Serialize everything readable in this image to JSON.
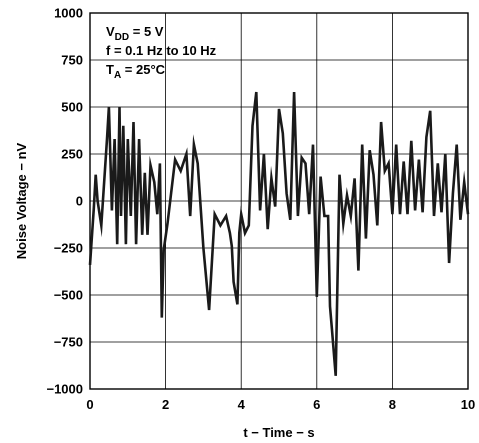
{
  "chart_data": {
    "type": "line",
    "title": "",
    "xlabel": "t − Time − s",
    "ylabel": "Noise Voltage − nV",
    "xlim": [
      0,
      10
    ],
    "ylim": [
      -1000,
      1000
    ],
    "x_ticks": [
      "0",
      "2",
      "4",
      "6",
      "8",
      "10"
    ],
    "y_ticks": [
      "1000",
      "750",
      "500",
      "250",
      "0",
      "−250",
      "−500",
      "−750",
      "−1000"
    ],
    "grid": true,
    "annotations": [
      {
        "main": "V",
        "sub": "DD",
        "rest": " = 5 V"
      },
      {
        "main": "f = 0.1 Hz to 10 Hz",
        "sub": "",
        "rest": ""
      },
      {
        "main": "T",
        "sub": "A",
        "rest": " = 25°C"
      }
    ],
    "series": [
      {
        "x": [
          0.0,
          0.1,
          0.15,
          0.2,
          0.3,
          0.45,
          0.5,
          0.58,
          0.65,
          0.72,
          0.78,
          0.82,
          0.88,
          0.95,
          1.0,
          1.08,
          1.15,
          1.22,
          1.3,
          1.38,
          1.45,
          1.52,
          1.6,
          1.7,
          1.78,
          1.85,
          1.9,
          1.95,
          2.05,
          2.25,
          2.4,
          2.55,
          2.65,
          2.75,
          2.85,
          3.0,
          3.15,
          3.3,
          3.45,
          3.6,
          3.7,
          3.75,
          3.8,
          3.9,
          3.95,
          4.0,
          4.1,
          4.2,
          4.3,
          4.4,
          4.5,
          4.6,
          4.7,
          4.8,
          4.9,
          5.0,
          5.1,
          5.2,
          5.3,
          5.4,
          5.5,
          5.6,
          5.7,
          5.8,
          5.9,
          6.0,
          6.1,
          6.2,
          6.3,
          6.35,
          6.4,
          6.5,
          6.6,
          6.7,
          6.8,
          6.9,
          7.0,
          7.1,
          7.2,
          7.3,
          7.4,
          7.5,
          7.6,
          7.7,
          7.8,
          7.9,
          8.0,
          8.1,
          8.2,
          8.3,
          8.4,
          8.5,
          8.6,
          8.7,
          8.8,
          8.9,
          9.0,
          9.1,
          9.2,
          9.3,
          9.4,
          9.5,
          9.6,
          9.7,
          9.8,
          9.9,
          10.0
        ],
        "y": [
          -340,
          -40,
          140,
          0,
          -130,
          330,
          500,
          -50,
          330,
          -230,
          500,
          -80,
          400,
          -230,
          330,
          -80,
          420,
          -230,
          330,
          -180,
          150,
          -180,
          190,
          100,
          -70,
          200,
          -620,
          -260,
          -120,
          220,
          160,
          250,
          -80,
          300,
          200,
          -250,
          -580,
          -70,
          -130,
          -80,
          -170,
          -240,
          -430,
          -550,
          -170,
          -70,
          -170,
          -130,
          400,
          580,
          -50,
          250,
          -150,
          120,
          -30,
          490,
          360,
          40,
          -100,
          580,
          -80,
          230,
          200,
          -70,
          300,
          -510,
          130,
          -80,
          -80,
          -560,
          -680,
          -930,
          140,
          -120,
          30,
          -80,
          120,
          -370,
          300,
          -200,
          270,
          140,
          -130,
          420,
          160,
          200,
          -70,
          300,
          -70,
          210,
          -70,
          320,
          -50,
          220,
          -60,
          340,
          480,
          -80,
          200,
          -60,
          250,
          -330,
          40,
          300,
          -100,
          100,
          -70
        ]
      }
    ]
  }
}
